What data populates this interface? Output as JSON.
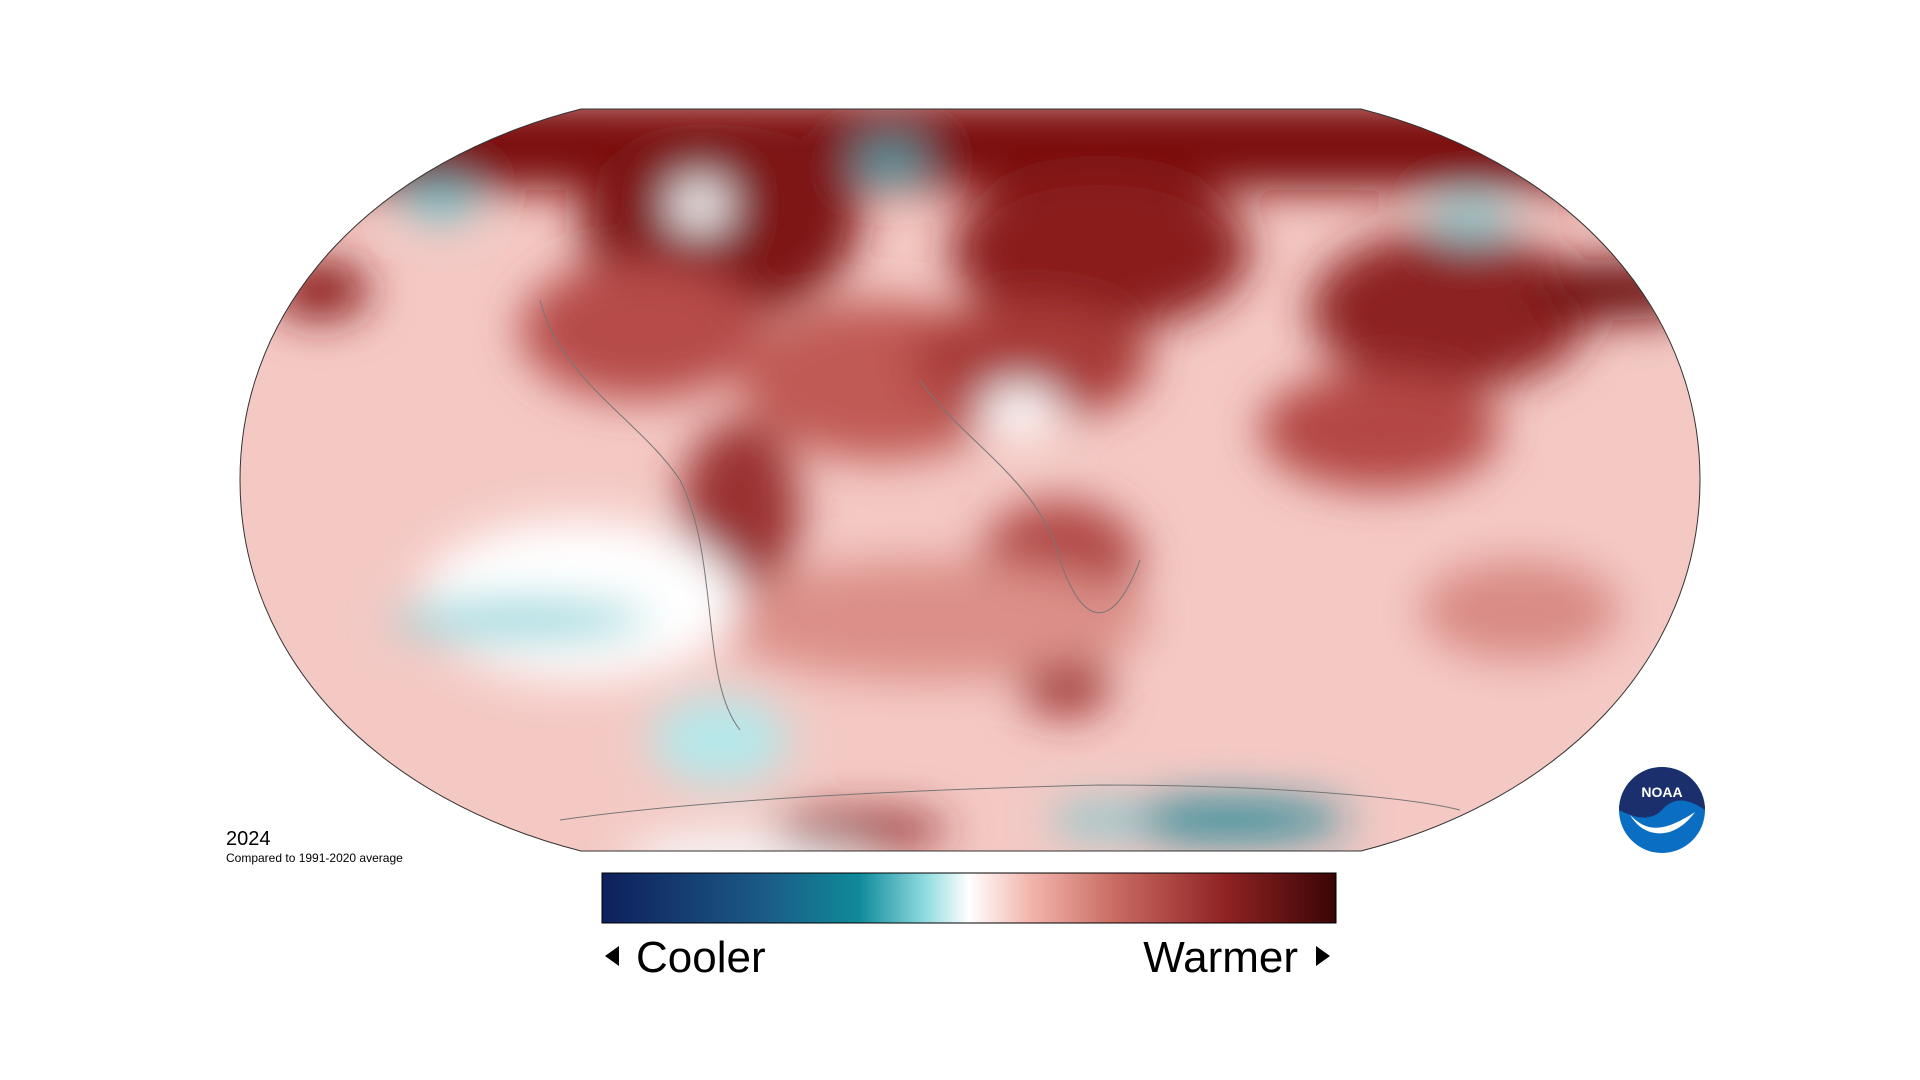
{
  "map": {
    "label": "2024",
    "note": "Compared to 1991-2020 average"
  },
  "legend": {
    "low": "Cooler",
    "high": "Warmer"
  },
  "logo": "NOAA"
}
